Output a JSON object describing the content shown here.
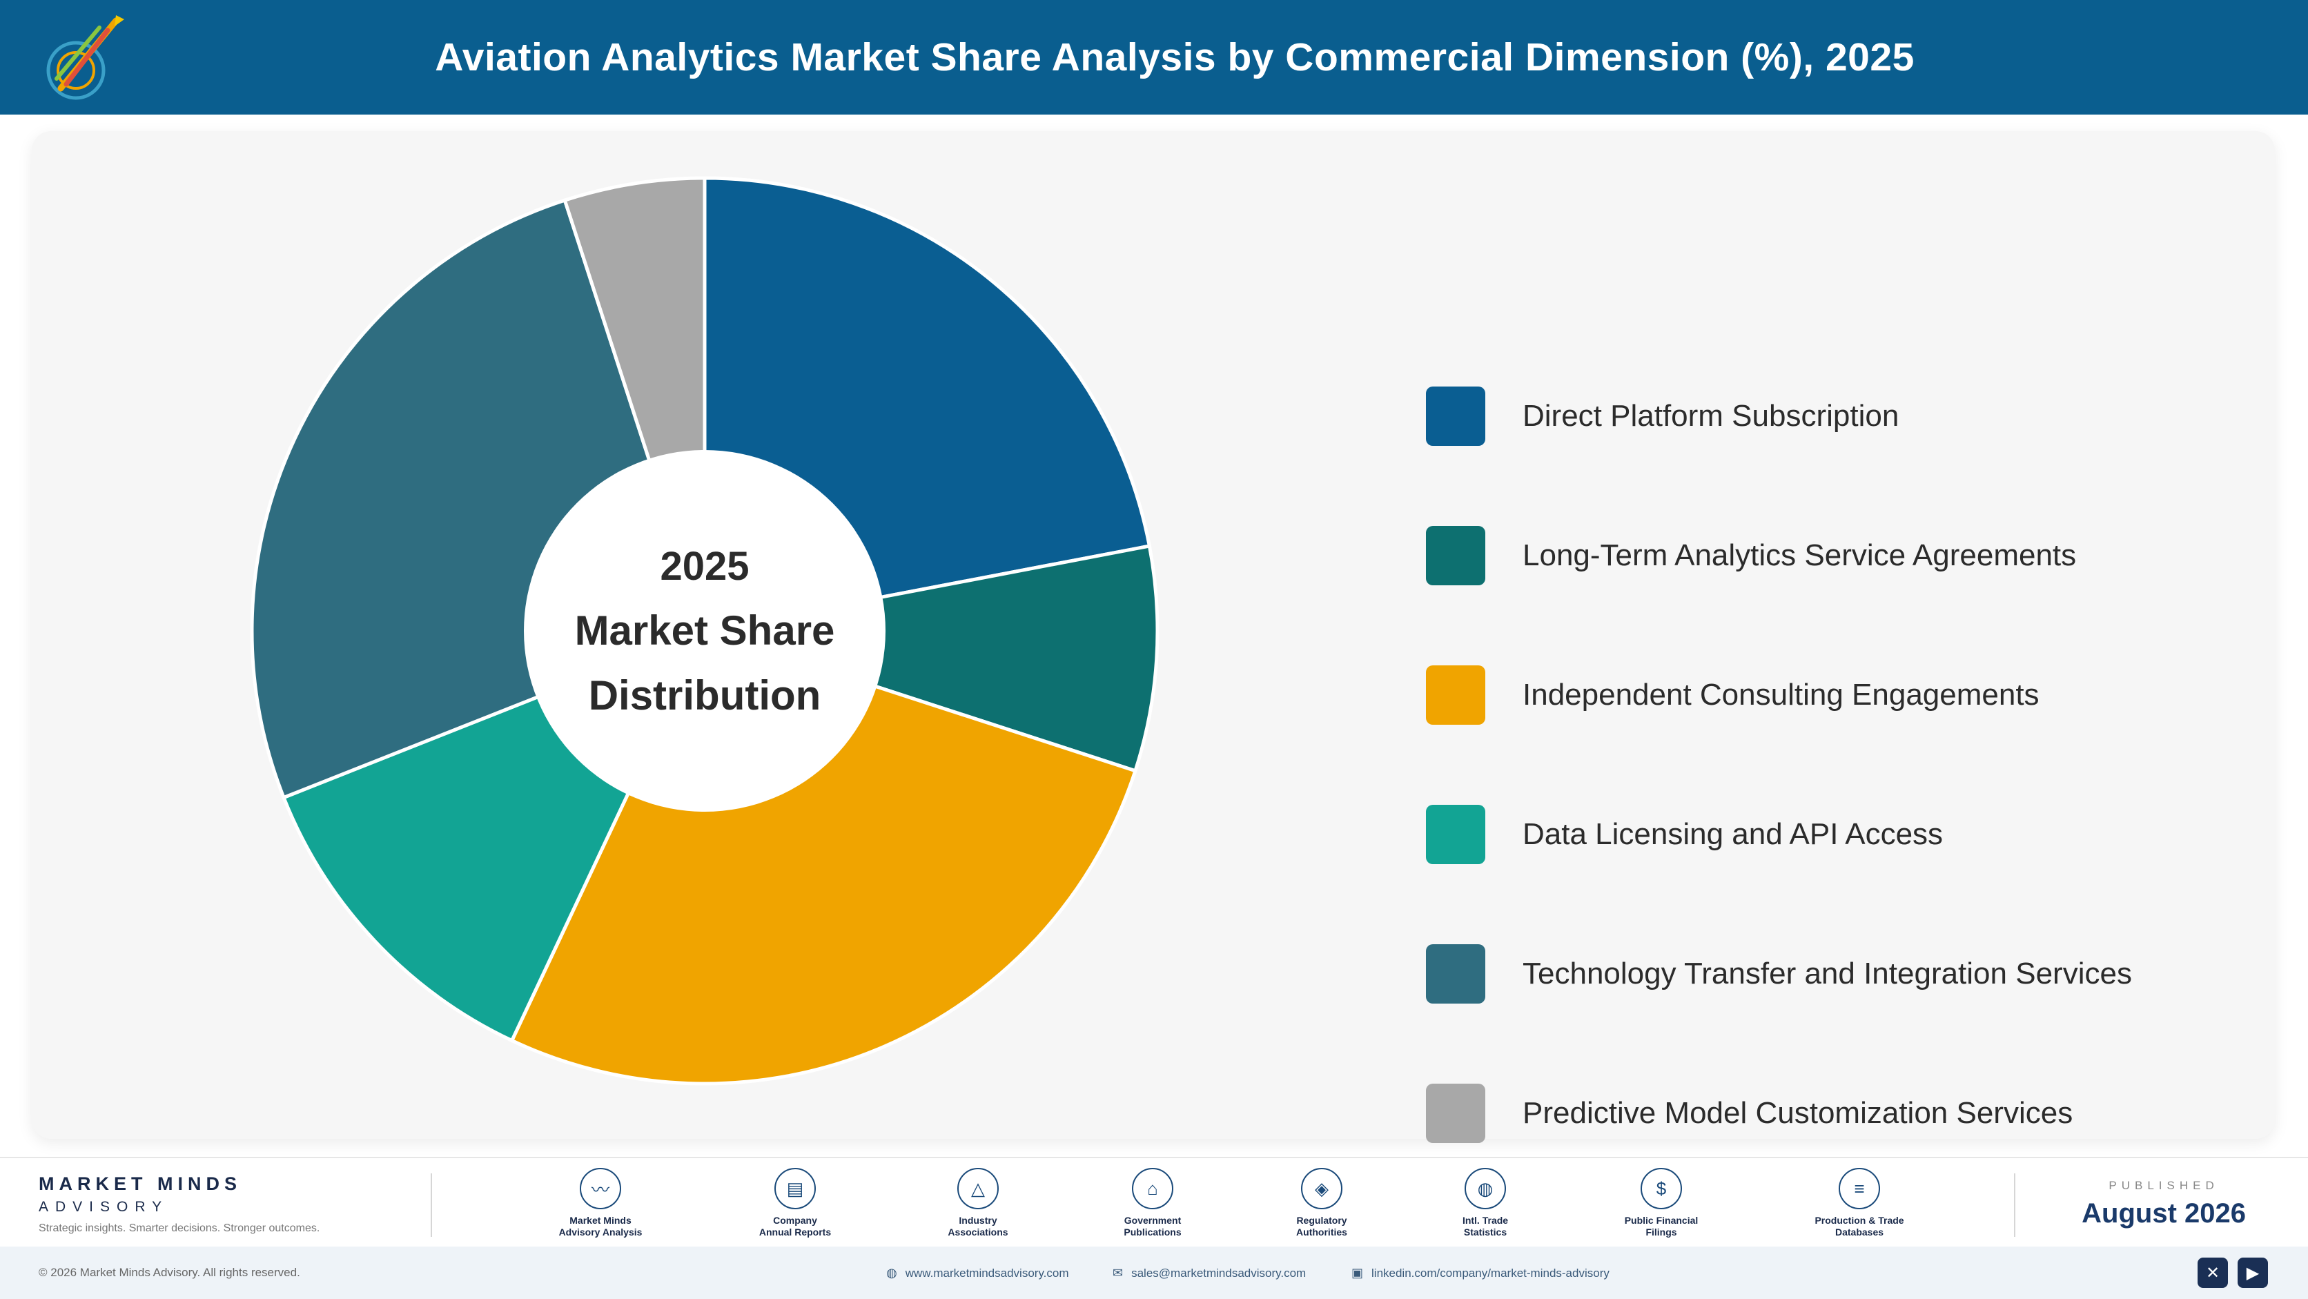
{
  "header": {
    "title": "Aviation Analytics Market Share Analysis by Commercial Dimension (%), 2025",
    "logo_icon": "rocket-logo-icon"
  },
  "chart_data": {
    "type": "pie",
    "center_label": [
      "2025",
      "Market Share",
      "Distribution"
    ],
    "categories": [
      "Direct Platform Subscription",
      "Long-Term Analytics Service Agreements",
      "Independent Consulting Engagements",
      "Data Licensing and API Access",
      "Technology Transfer and Integration Services",
      "Predictive Model Customization Services"
    ],
    "values": [
      22,
      8,
      27,
      12,
      26,
      5
    ],
    "colors": [
      "#0a5e92",
      "#0d7070",
      "#f0a400",
      "#12a494",
      "#2f6d80",
      "#a8a8a8"
    ],
    "legend_position": "right"
  },
  "footer": {
    "brand_name": "MARKET MINDS",
    "brand_sub": "ADVISORY",
    "brand_tagline": "Strategic insights. Smarter decisions. Stronger outcomes.",
    "sources": [
      {
        "label": "Market Minds\nAdvisory Analysis",
        "icon": "trend-icon",
        "glyph": "〰"
      },
      {
        "label": "Company\nAnnual Reports",
        "icon": "document-icon",
        "glyph": "▤"
      },
      {
        "label": "Industry\nAssociations",
        "icon": "network-icon",
        "glyph": "△"
      },
      {
        "label": "Government\nPublications",
        "icon": "government-icon",
        "glyph": "⌂"
      },
      {
        "label": "Regulatory\nAuthorities",
        "icon": "shield-icon",
        "glyph": "◈"
      },
      {
        "label": "Intl. Trade\nStatistics",
        "icon": "globe-icon",
        "glyph": "◍"
      },
      {
        "label": "Public Financial\nFilings",
        "icon": "coin-icon",
        "glyph": "$"
      },
      {
        "label": "Production & Trade\nDatabases",
        "icon": "database-icon",
        "glyph": "≡"
      }
    ],
    "published_label": "PUBLISHED",
    "published_date": "August 2026"
  },
  "bottombar": {
    "copyright": "© 2026 Market Minds Advisory. All rights reserved.",
    "website": "www.marketmindsadvisory.com",
    "email": "sales@marketmindsadvisory.com",
    "linkedin": "linkedin.com/company/market-minds-advisory",
    "social_icons": [
      "x-icon",
      "youtube-icon"
    ]
  }
}
